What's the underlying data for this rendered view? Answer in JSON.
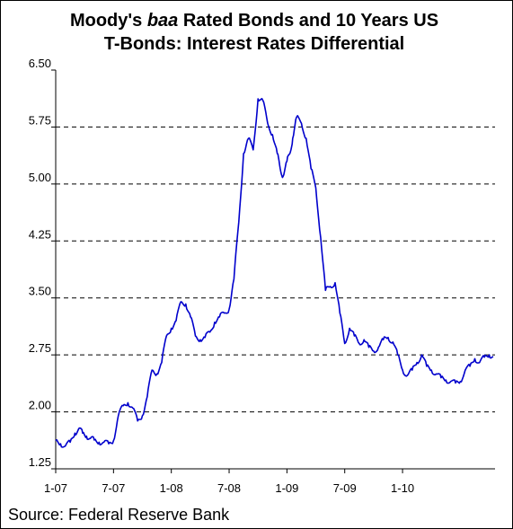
{
  "chart_data": {
    "type": "line",
    "title_parts": [
      {
        "text": "Moody's ",
        "italic": false
      },
      {
        "text": "baa",
        "italic": true
      },
      {
        "text": " Rated Bonds and 10 Years US",
        "italic": false
      }
    ],
    "title_line2": "T-Bonds: Interest Rates Differential",
    "xlabel": "",
    "ylabel": "",
    "ylim": [
      1.25,
      6.5
    ],
    "yticks": [
      "6.50",
      "5.75",
      "5.00",
      "4.25",
      "3.50",
      "2.75",
      "2.00",
      "1.25"
    ],
    "ytick_values": [
      6.5,
      5.75,
      5.0,
      4.25,
      3.5,
      2.75,
      2.0,
      1.25
    ],
    "xlim": [
      0,
      45.6
    ],
    "xticks": [
      "1-07",
      "7-07",
      "1-08",
      "7-08",
      "1-09",
      "7-09",
      "1-10"
    ],
    "xtick_values": [
      0,
      6,
      12,
      18,
      24,
      30,
      36
    ],
    "grid": "horizontal-dashed",
    "line_color": "#0000cc",
    "source": "Source: Federal Reserve Bank",
    "series": [
      {
        "x": [
          0,
          0.5,
          1,
          1.5,
          2,
          2.4,
          2.8,
          3.2,
          3.6,
          4,
          4.5,
          5,
          5.5,
          6,
          6.5,
          7,
          7.5,
          8,
          8.5,
          9,
          9.5,
          10,
          10.5,
          11,
          11.5,
          12,
          12.5,
          13,
          13.5,
          14,
          14.5,
          15,
          15.5,
          16,
          16.5,
          17,
          17.5,
          18,
          18.5,
          19,
          19.5,
          20,
          20.5,
          21,
          21.5,
          22,
          22.5,
          23,
          23.3,
          23.6,
          24,
          24.3,
          24.6,
          25,
          25.5,
          26,
          26.5,
          27,
          27.5,
          28,
          28.5,
          29,
          29.5,
          30,
          30.5,
          31,
          31.5,
          32,
          32.5,
          33,
          33.5,
          34,
          34.5,
          35,
          35.5,
          36,
          36.5,
          37,
          37.5,
          38,
          38.5,
          39,
          39.5,
          40,
          40.5,
          41,
          41.5,
          42,
          42.5,
          43,
          43.5,
          44,
          44.5,
          45,
          45.4
        ],
        "y": [
          1.62,
          1.58,
          1.55,
          1.6,
          1.72,
          1.78,
          1.72,
          1.68,
          1.65,
          1.63,
          1.6,
          1.6,
          1.58,
          1.62,
          1.95,
          2.08,
          2.12,
          2.05,
          1.88,
          1.95,
          2.2,
          2.55,
          2.5,
          2.65,
          3.0,
          3.1,
          3.2,
          3.45,
          3.42,
          3.25,
          3.0,
          2.95,
          2.98,
          3.05,
          3.18,
          3.25,
          3.3,
          3.35,
          3.75,
          4.5,
          5.4,
          5.6,
          5.45,
          6.12,
          6.1,
          5.8,
          5.65,
          5.4,
          5.2,
          5.1,
          5.3,
          5.4,
          5.6,
          5.88,
          5.8,
          5.6,
          5.2,
          4.95,
          4.3,
          3.6,
          3.65,
          3.7,
          3.3,
          2.9,
          3.1,
          3.0,
          2.9,
          2.95,
          2.85,
          2.8,
          2.85,
          2.95,
          2.98,
          2.92,
          2.75,
          2.55,
          2.48,
          2.55,
          2.65,
          2.75,
          2.6,
          2.55,
          2.5,
          2.45,
          2.42,
          2.4,
          2.38,
          2.4,
          2.55,
          2.6,
          2.7,
          2.65,
          2.72,
          2.75,
          2.73
        ]
      }
    ]
  }
}
